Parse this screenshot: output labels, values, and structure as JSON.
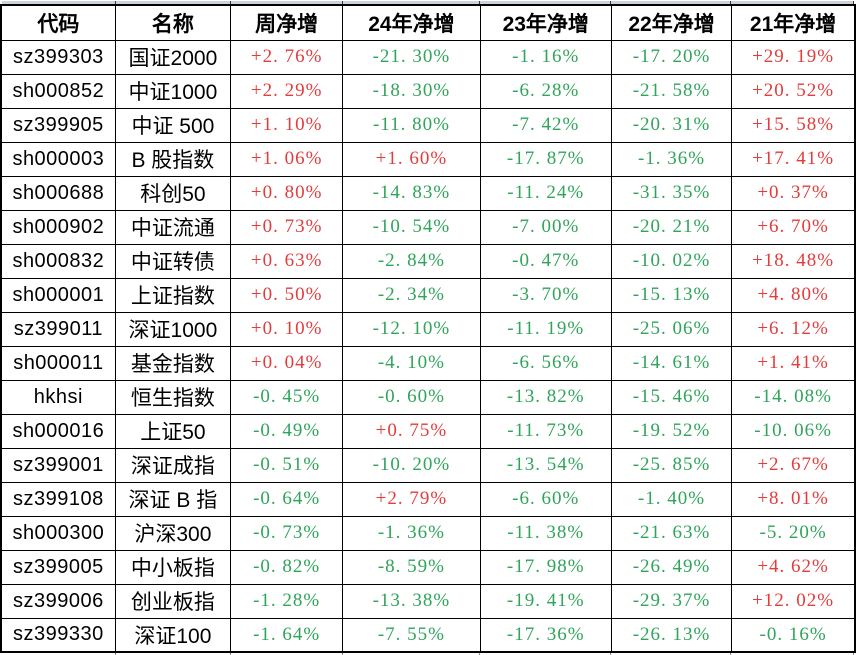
{
  "colors": {
    "positive_red": "#e23c3c",
    "negative_green": "#2fa45a",
    "text_black": "#000000",
    "grid_border": "#000000",
    "top_sliver_fill": "#cdd3da"
  },
  "table": {
    "columns": [
      {
        "key": "code",
        "label": "代码"
      },
      {
        "key": "name",
        "label": "名称"
      },
      {
        "key": "week",
        "label": "周净增"
      },
      {
        "key": "y24",
        "label": "24年净增"
      },
      {
        "key": "y23",
        "label": "23年净增"
      },
      {
        "key": "y22",
        "label": "22年净增"
      },
      {
        "key": "y21",
        "label": "21年净增"
      }
    ],
    "rows": [
      {
        "code": "sz399303",
        "name": "国证2000",
        "values": [
          "+2. 76%",
          "-21. 30%",
          "-1. 16%",
          "-17. 20%",
          "+29. 19%"
        ]
      },
      {
        "code": "sh000852",
        "name": "中证1000",
        "values": [
          "+2. 29%",
          "-18. 30%",
          "-6. 28%",
          "-21. 58%",
          "+20. 52%"
        ]
      },
      {
        "code": "sz399905",
        "name": "中证 500",
        "values": [
          "+1. 10%",
          "-11. 80%",
          "-7. 42%",
          "-20. 31%",
          "+15. 58%"
        ]
      },
      {
        "code": "sh000003",
        "name": "B 股指数",
        "values": [
          "+1. 06%",
          "+1. 60%",
          "-17. 87%",
          "-1. 36%",
          "+17. 41%"
        ]
      },
      {
        "code": "sh000688",
        "name": "科创50",
        "values": [
          "+0. 80%",
          "-14. 83%",
          "-11. 24%",
          "-31. 35%",
          "+0. 37%"
        ]
      },
      {
        "code": "sh000902",
        "name": "中证流通",
        "values": [
          "+0. 73%",
          "-10. 54%",
          "-7. 00%",
          "-20. 21%",
          "+6. 70%"
        ]
      },
      {
        "code": "sh000832",
        "name": "中证转债",
        "values": [
          "+0. 63%",
          "-2. 84%",
          "-0. 47%",
          "-10. 02%",
          "+18. 48%"
        ]
      },
      {
        "code": "sh000001",
        "name": "上证指数",
        "values": [
          "+0. 50%",
          "-2. 34%",
          "-3. 70%",
          "-15. 13%",
          "+4. 80%"
        ]
      },
      {
        "code": "sz399011",
        "name": "深证1000",
        "values": [
          "+0. 10%",
          "-12. 10%",
          "-11. 19%",
          "-25. 06%",
          "+6. 12%"
        ]
      },
      {
        "code": "sh000011",
        "name": "基金指数",
        "values": [
          "+0. 04%",
          "-4. 10%",
          "-6. 56%",
          "-14. 61%",
          "+1. 41%"
        ]
      },
      {
        "code": "hkhsi",
        "name": "恒生指数",
        "values": [
          "-0. 45%",
          "-0. 60%",
          "-13. 82%",
          "-15. 46%",
          "-14. 08%"
        ]
      },
      {
        "code": "sh000016",
        "name": "上证50",
        "values": [
          "-0. 49%",
          "+0. 75%",
          "-11. 73%",
          "-19. 52%",
          "-10. 06%"
        ]
      },
      {
        "code": "sz399001",
        "name": "深证成指",
        "values": [
          "-0. 51%",
          "-10. 20%",
          "-13. 54%",
          "-25. 85%",
          "+2. 67%"
        ]
      },
      {
        "code": "sz399108",
        "name": "深证 B 指",
        "values": [
          "-0. 64%",
          "+2. 79%",
          "-6. 60%",
          "-1. 40%",
          "+8. 01%"
        ]
      },
      {
        "code": "sh000300",
        "name": "沪深300",
        "values": [
          "-0. 73%",
          "-1. 36%",
          "-11. 38%",
          "-21. 63%",
          "-5. 20%"
        ]
      },
      {
        "code": "sz399005",
        "name": "中小板指",
        "values": [
          "-0. 82%",
          "-8. 59%",
          "-17. 98%",
          "-26. 49%",
          "+4. 62%"
        ]
      },
      {
        "code": "sz399006",
        "name": "创业板指",
        "values": [
          "-1. 28%",
          "-13. 38%",
          "-19. 41%",
          "-29. 37%",
          "+12. 02%"
        ]
      },
      {
        "code": "sz399330",
        "name": "深证100",
        "values": [
          "-1. 64%",
          "-7. 55%",
          "-17. 36%",
          "-26. 13%",
          "-0. 16%"
        ]
      }
    ]
  }
}
